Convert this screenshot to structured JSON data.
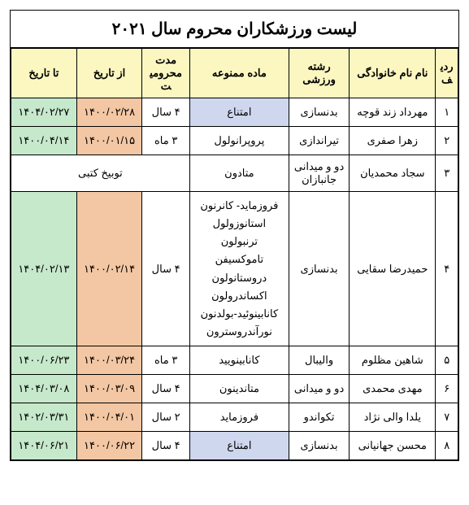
{
  "title": "لیست ورزشکاران محروم سال ۲۰۲۱",
  "headers": {
    "idx": "ردیف",
    "name": "نام نام خانوادگی",
    "sport": "رشته ورزشی",
    "substance": "ماده ممنوعه",
    "duration": "مدت محرومیت",
    "from": "از تاریخ",
    "to": "تا تاریخ"
  },
  "colors": {
    "header_bg": "#fcf7c1",
    "from_bg": "#f3c7a3",
    "to_bg": "#c6e8cb",
    "substance_highlight_bg": "#cfd7ee",
    "border": "#000000",
    "background": "#ffffff"
  },
  "rows": [
    {
      "idx": "۱",
      "name": "مهرداد زند قوچه",
      "sport": "بدنسازی",
      "substance": [
        "امتناع"
      ],
      "substance_highlight": true,
      "duration": "۴ سال",
      "from": "۱۴۰۰/۰۲/۲۸",
      "to": "۱۴۰۴/۰۲/۲۷"
    },
    {
      "idx": "۲",
      "name": "زهرا صفری",
      "sport": "تیراندازی",
      "substance": [
        "پروپرانولول"
      ],
      "substance_highlight": false,
      "duration": "۳ ماه",
      "from": "۱۴۰۰/۰۱/۱۵",
      "to": "۱۴۰۰/۰۴/۱۴"
    },
    {
      "idx": "۳",
      "name": "سجاد محمدیان",
      "sport": "دو و میدانی جانبازان",
      "substance": [
        "متادون"
      ],
      "substance_highlight": false,
      "merged_note": "توبیخ کتبی"
    },
    {
      "idx": "۴",
      "name": "حمیدرضا سقایی",
      "sport": "بدنسازی",
      "substance": [
        "فروزماید- کانرنون",
        "استانوزولول",
        "ترنبولون",
        "تاموکسیفن",
        "دروستانولون",
        "اکساندرولون",
        "کانابینوئید-بولدنون",
        "نورآندروسترون"
      ],
      "substance_highlight": false,
      "duration": "۴ سال",
      "from": "۱۴۰۰/۰۲/۱۴",
      "to": "۱۴۰۴/۰۲/۱۳"
    },
    {
      "idx": "۵",
      "name": "شاهین مظلوم",
      "sport": "والیبال",
      "substance": [
        "کانابینویید"
      ],
      "substance_highlight": false,
      "duration": "۳ ماه",
      "from": "۱۴۰۰/۰۳/۲۴",
      "to": "۱۴۰۰/۰۶/۲۳"
    },
    {
      "idx": "۶",
      "name": "مهدی محمدی",
      "sport": "دو و میدانی",
      "substance": [
        "متاندینون"
      ],
      "substance_highlight": false,
      "duration": "۴ سال",
      "from": "۱۴۰۰/۰۳/۰۹",
      "to": "۱۴۰۴/۰۳/۰۸"
    },
    {
      "idx": "۷",
      "name": "یلدا والی نژاد",
      "sport": "تکواندو",
      "substance": [
        "فروزماید"
      ],
      "substance_highlight": false,
      "duration": "۲ سال",
      "from": "۱۴۰۰/۰۴/۰۱",
      "to": "۱۴۰۲/۰۳/۳۱"
    },
    {
      "idx": "۸",
      "name": "محسن جهانیانی",
      "sport": "بدنسازی",
      "substance": [
        "امتناع"
      ],
      "substance_highlight": true,
      "duration": "۴ سال",
      "from": "۱۴۰۰/۰۶/۲۲",
      "to": "۱۴۰۴/۰۶/۲۱"
    }
  ]
}
